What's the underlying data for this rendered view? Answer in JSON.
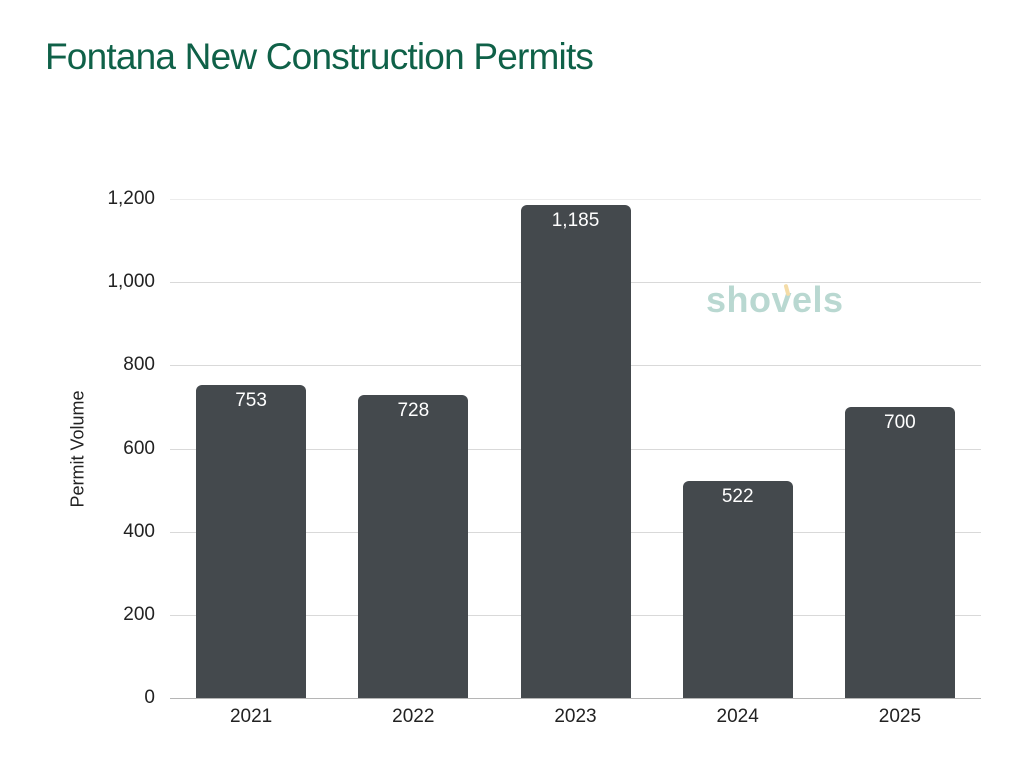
{
  "title": "Fontana New Construction Permits",
  "watermark": "shovels",
  "colors": {
    "title": "#0f6148",
    "bar": "#44494d",
    "bar_label": "#ffffff",
    "gridline": "#d9d9d9",
    "watermark": "#b9d8d1",
    "watermark_accent": "#f4dca7"
  },
  "y_axis": {
    "label": "Permit Volume",
    "ticks": [
      "0",
      "200",
      "400",
      "600",
      "800",
      "1,000",
      "1,200"
    ]
  },
  "x_axis": {
    "ticks": [
      "2021",
      "2022",
      "2023",
      "2024",
      "2025"
    ]
  },
  "bars": [
    {
      "year": "2021",
      "value": 753,
      "label": "753"
    },
    {
      "year": "2022",
      "value": 728,
      "label": "728"
    },
    {
      "year": "2023",
      "value": 1185,
      "label": "1,185"
    },
    {
      "year": "2024",
      "value": 522,
      "label": "522"
    },
    {
      "year": "2025",
      "value": 700,
      "label": "700"
    }
  ],
  "chart_data": {
    "type": "bar",
    "title": "Fontana New Construction Permits",
    "categories": [
      "2021",
      "2022",
      "2023",
      "2024",
      "2025"
    ],
    "values": [
      753,
      728,
      1185,
      522,
      700
    ],
    "xlabel": "",
    "ylabel": "Permit Volume",
    "ylim": [
      0,
      1200
    ],
    "yticks": [
      0,
      200,
      400,
      600,
      800,
      1000,
      1200
    ],
    "grid": true,
    "data_labels": true,
    "legend": null
  }
}
